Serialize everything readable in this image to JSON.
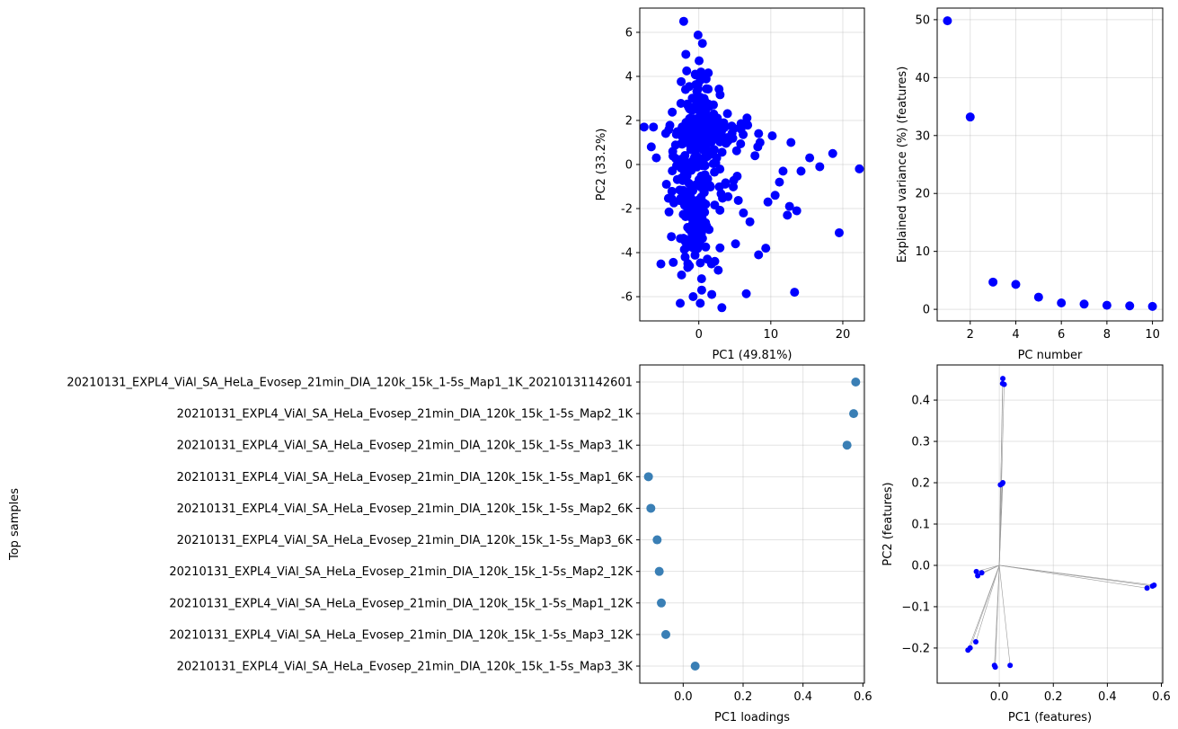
{
  "colors": {
    "points": "#0000ff",
    "loading_points": "#3a7fb5",
    "biplot_lines": "#999999",
    "grid": "#b0b0b0"
  },
  "chart_data": [
    {
      "type": "scatter",
      "id": "pca-scores",
      "xlabel": "PC1 (49.81%)",
      "ylabel": "PC2 (33.2%)",
      "xlim": [
        -8.2,
        23.0
      ],
      "ylim": [
        -7.1,
        7.1
      ],
      "xticks": [
        0,
        10,
        20
      ],
      "yticks": [
        -6,
        -4,
        -2,
        0,
        2,
        4,
        6
      ],
      "grid": true,
      "clusters": [
        {
          "cx": -0.8,
          "cy": 0.5,
          "sx": 1.4,
          "sy": 1.5,
          "n": 110
        },
        {
          "cx": -0.6,
          "cy": -2.6,
          "sx": 0.9,
          "sy": 0.9,
          "n": 80
        },
        {
          "cx": 2.2,
          "cy": 1.5,
          "sx": 2.2,
          "sy": 0.35,
          "n": 70
        },
        {
          "cx": 0.3,
          "cy": -1.0,
          "sx": 2.8,
          "sy": 1.9,
          "n": 90
        },
        {
          "cx": 0.2,
          "cy": 2.6,
          "sx": 0.7,
          "sy": 1.0,
          "n": 45
        }
      ],
      "points": [
        [
          -2.1,
          6.5
        ],
        [
          -1.8,
          5.0
        ],
        [
          0.5,
          5.5
        ],
        [
          0.3,
          4.2
        ],
        [
          -0.5,
          4.1
        ],
        [
          -7.6,
          1.7
        ],
        [
          -6.3,
          1.7
        ],
        [
          -6.6,
          0.8
        ],
        [
          -5.9,
          0.3
        ],
        [
          -4.5,
          -0.9
        ],
        [
          22.3,
          -0.2
        ],
        [
          19.5,
          -3.1
        ],
        [
          18.6,
          0.5
        ],
        [
          16.8,
          -0.1
        ],
        [
          15.4,
          0.3
        ],
        [
          14.2,
          -0.3
        ],
        [
          13.6,
          -2.1
        ],
        [
          13.3,
          -5.8
        ],
        [
          12.8,
          1.0
        ],
        [
          12.6,
          -1.9
        ],
        [
          12.3,
          -2.3
        ],
        [
          11.7,
          -0.3
        ],
        [
          11.2,
          -0.8
        ],
        [
          10.6,
          -1.4
        ],
        [
          10.2,
          1.3
        ],
        [
          9.6,
          -1.7
        ],
        [
          9.3,
          -3.8
        ],
        [
          8.5,
          1.0
        ],
        [
          8.3,
          -4.1
        ],
        [
          7.8,
          0.4
        ],
        [
          3.2,
          -6.5
        ],
        [
          1.8,
          -5.9
        ],
        [
          0.4,
          -5.7
        ],
        [
          0.2,
          -6.3
        ],
        [
          -1.3,
          -4.6
        ],
        [
          -1.9,
          -4.2
        ],
        [
          2.7,
          -4.8
        ],
        [
          6.2,
          -2.2
        ],
        [
          7.1,
          -2.6
        ],
        [
          5.1,
          -3.6
        ]
      ]
    },
    {
      "type": "scatter",
      "id": "explained-variance",
      "xlabel": "PC number",
      "ylabel": "Explained variance (%) (features)",
      "xlim": [
        0.55,
        10.45
      ],
      "ylim": [
        -2.0,
        52.0
      ],
      "xticks": [
        2,
        4,
        6,
        8,
        10
      ],
      "yticks": [
        0,
        10,
        20,
        30,
        40,
        50
      ],
      "grid": true,
      "x": [
        1,
        2,
        3,
        4,
        5,
        6,
        7,
        8,
        9,
        10
      ],
      "y": [
        49.81,
        33.2,
        4.7,
        4.3,
        2.1,
        1.1,
        0.9,
        0.7,
        0.6,
        0.5
      ]
    },
    {
      "type": "scatter",
      "id": "pc1-loadings",
      "xlabel": "PC1 loadings",
      "ylabel": "Top samples",
      "xlim": [
        -0.145,
        0.605
      ],
      "xticks": [
        0.0,
        0.2,
        0.4,
        0.6
      ],
      "xticklabels": [
        "0.0",
        "0.2",
        "0.4",
        "0.6"
      ],
      "grid": true,
      "categories": [
        "20210131_EXPL4_ViAl_SA_HeLa_Evosep_21min_DIA_120k_15k_1-5s_Map1_1K_20210131142601",
        "20210131_EXPL4_ViAl_SA_HeLa_Evosep_21min_DIA_120k_15k_1-5s_Map2_1K",
        "20210131_EXPL4_ViAl_SA_HeLa_Evosep_21min_DIA_120k_15k_1-5s_Map3_1K",
        "20210131_EXPL4_ViAl_SA_HeLa_Evosep_21min_DIA_120k_15k_1-5s_Map1_6K",
        "20210131_EXPL4_ViAl_SA_HeLa_Evosep_21min_DIA_120k_15k_1-5s_Map2_6K",
        "20210131_EXPL4_ViAl_SA_HeLa_Evosep_21min_DIA_120k_15k_1-5s_Map3_6K",
        "20210131_EXPL4_ViAl_SA_HeLa_Evosep_21min_DIA_120k_15k_1-5s_Map2_12K",
        "20210131_EXPL4_ViAl_SA_HeLa_Evosep_21min_DIA_120k_15k_1-5s_Map1_12K",
        "20210131_EXPL4_ViAl_SA_HeLa_Evosep_21min_DIA_120k_15k_1-5s_Map3_12K",
        "20210131_EXPL4_ViAl_SA_HeLa_Evosep_21min_DIA_120k_15k_1-5s_Map3_3K"
      ],
      "values": [
        0.576,
        0.569,
        0.547,
        -0.116,
        -0.108,
        -0.087,
        -0.08,
        -0.073,
        -0.058,
        0.04
      ]
    },
    {
      "type": "scatter",
      "id": "biplot",
      "xlabel": "PC1 (features)",
      "ylabel": "PC2 (features)",
      "xlim": [
        -0.23,
        0.605
      ],
      "ylim": [
        -0.285,
        0.485
      ],
      "xticks": [
        0.0,
        0.2,
        0.4,
        0.6
      ],
      "xticklabels": [
        "0.0",
        "0.2",
        "0.4",
        "0.6"
      ],
      "yticks": [
        -0.2,
        -0.1,
        0.0,
        0.1,
        0.2,
        0.3,
        0.4
      ],
      "yticklabels": [
        "−0.2",
        "−0.1",
        "0.0",
        "0.1",
        "0.2",
        "0.3",
        "0.4"
      ],
      "grid": true,
      "points": [
        [
          0.013,
          0.452
        ],
        [
          0.012,
          0.44
        ],
        [
          0.018,
          0.438
        ],
        [
          0.004,
          0.195
        ],
        [
          0.011,
          0.198
        ],
        [
          0.013,
          0.2
        ],
        [
          -0.085,
          -0.015
        ],
        [
          -0.08,
          -0.025
        ],
        [
          -0.065,
          -0.018
        ],
        [
          0.573,
          -0.048
        ],
        [
          0.567,
          -0.05
        ],
        [
          0.547,
          -0.055
        ],
        [
          -0.116,
          -0.205
        ],
        [
          -0.108,
          -0.2
        ],
        [
          -0.087,
          -0.185
        ],
        [
          -0.018,
          -0.242
        ],
        [
          -0.015,
          -0.246
        ],
        [
          0.04,
          -0.242
        ]
      ]
    }
  ]
}
